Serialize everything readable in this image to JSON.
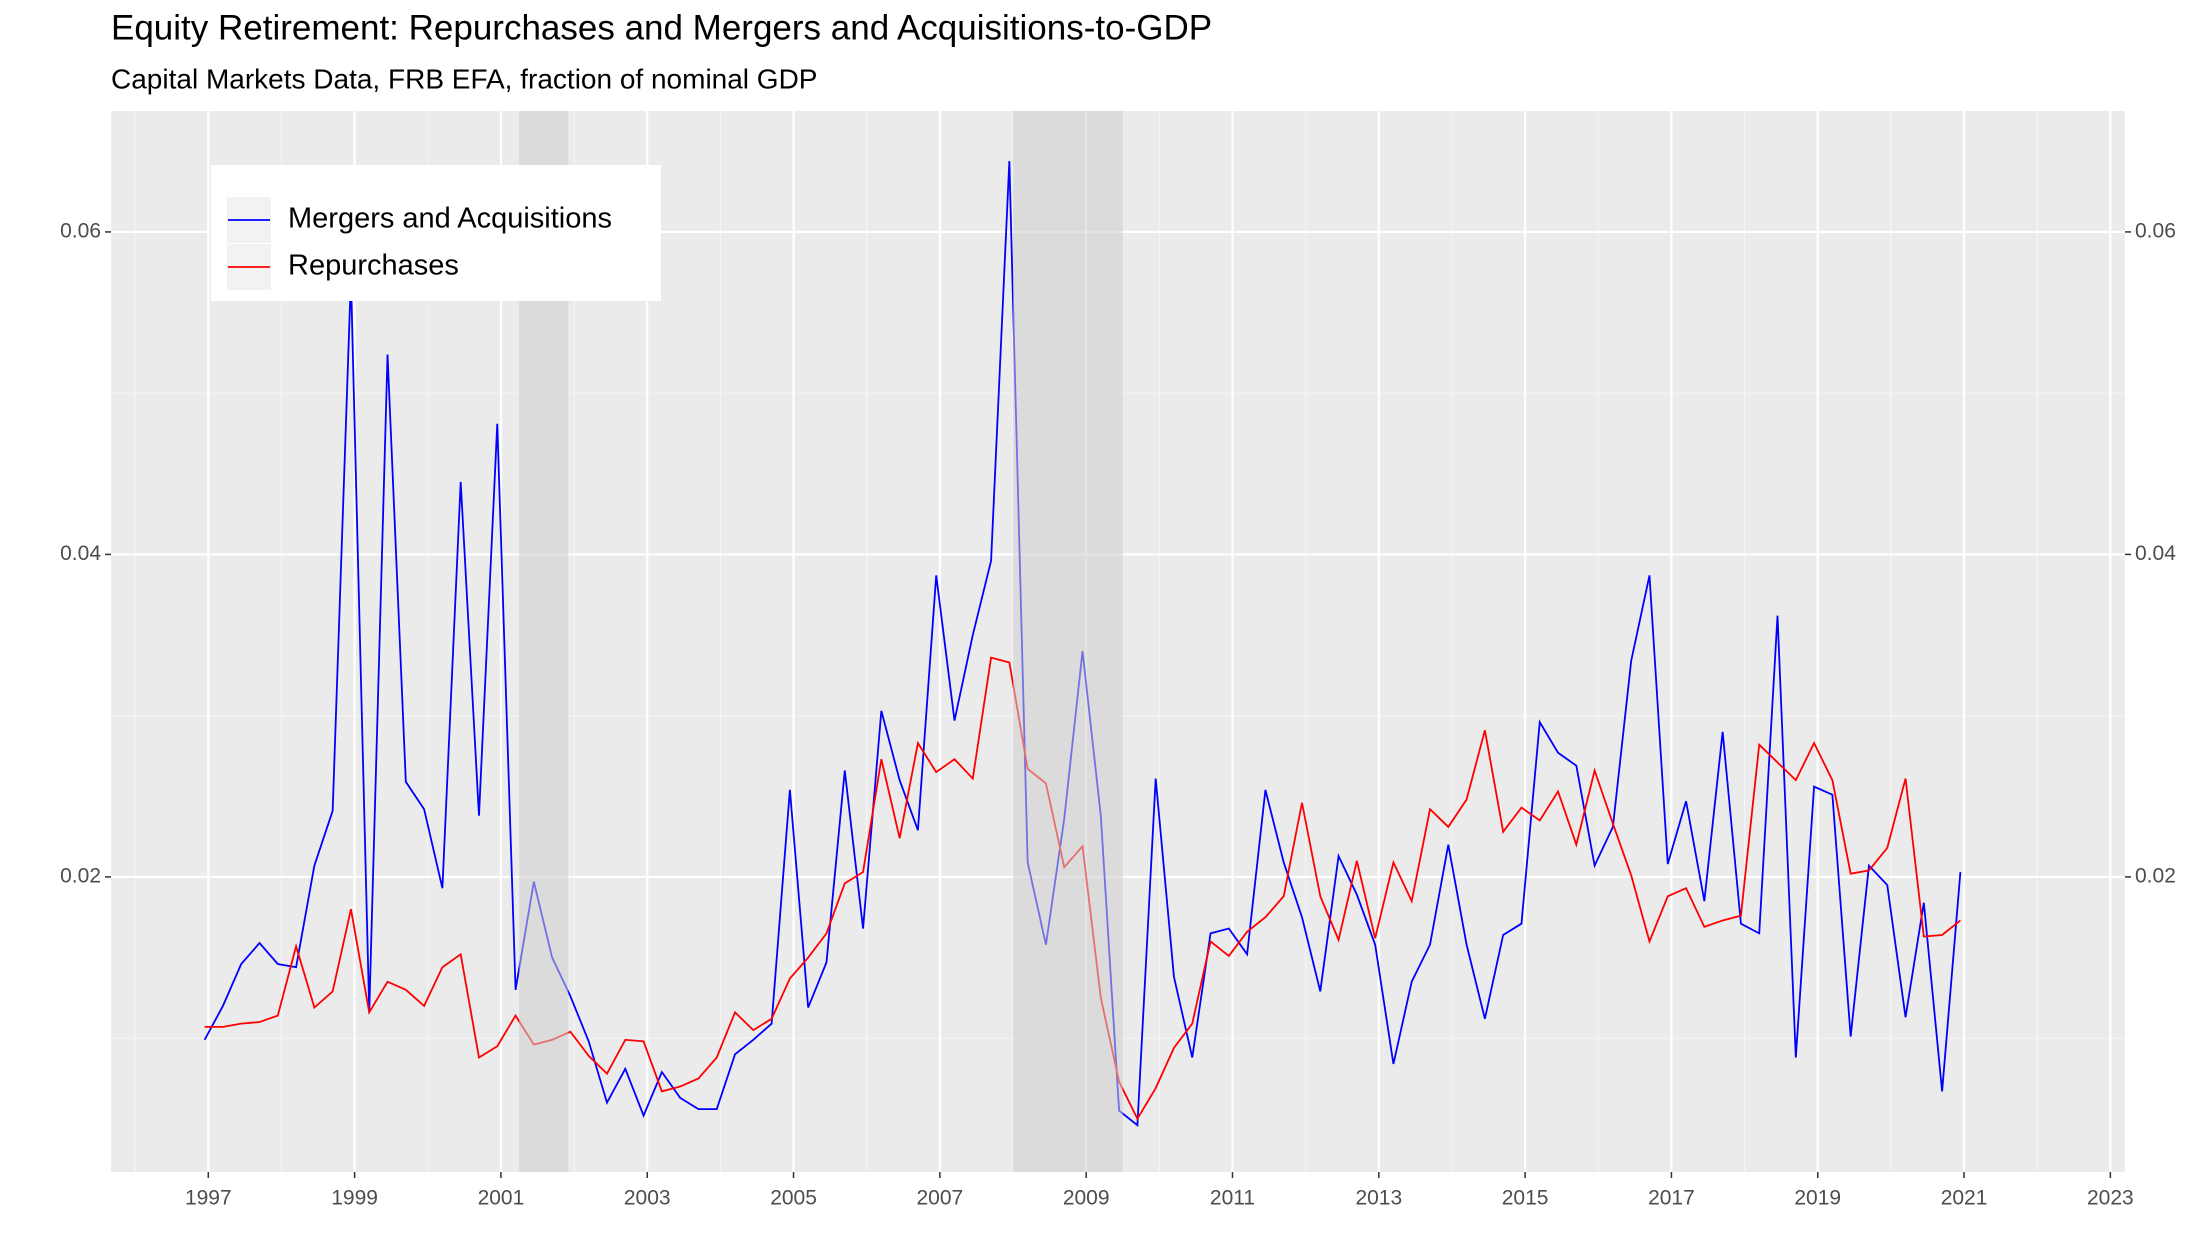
{
  "chart_data": {
    "type": "line",
    "title": "Equity Retirement: Repurchases and Mergers and Acquisitions-to-GDP",
    "subtitle": "Capital Markets Data, FRB EFA, fraction of nominal GDP",
    "x": [
      1996.95,
      1997.2,
      1997.45,
      1997.7,
      1997.95,
      1998.2,
      1998.45,
      1998.7,
      1998.95,
      1999.2,
      1999.45,
      1999.7,
      1999.95,
      2000.2,
      2000.45,
      2000.7,
      2000.95,
      2001.2,
      2001.45,
      2001.7,
      2001.95,
      2002.2,
      2002.45,
      2002.7,
      2002.95,
      2003.2,
      2003.45,
      2003.7,
      2003.95,
      2004.2,
      2004.45,
      2004.7,
      2004.95,
      2005.2,
      2005.45,
      2005.7,
      2005.95,
      2006.2,
      2006.45,
      2006.7,
      2006.95,
      2007.2,
      2007.45,
      2007.7,
      2007.95,
      2008.2,
      2008.45,
      2008.7,
      2008.95,
      2009.2,
      2009.45,
      2009.7,
      2009.95,
      2010.2,
      2010.45,
      2010.7,
      2010.95,
      2011.2,
      2011.45,
      2011.7,
      2011.95,
      2012.2,
      2012.45,
      2012.7,
      2012.95,
      2013.2,
      2013.45,
      2013.7,
      2013.95,
      2014.2,
      2014.45,
      2014.7,
      2014.95,
      2015.2,
      2015.45,
      2015.7,
      2015.95,
      2016.2,
      2016.45,
      2016.7,
      2016.95,
      2017.2,
      2017.45,
      2017.7,
      2017.95,
      2018.2,
      2018.45,
      2018.7,
      2018.95,
      2019.2,
      2019.45,
      2019.7,
      2019.95,
      2020.2,
      2020.45,
      2020.7,
      2020.95
    ],
    "series": [
      {
        "name": "Mergers and Acquisitions",
        "color": "#0000ff",
        "values": [
          0.0099,
          0.012,
          0.0146,
          0.0159,
          0.0146,
          0.0144,
          0.0207,
          0.0241,
          0.0572,
          0.0116,
          0.0524,
          0.0259,
          0.0242,
          0.0193,
          0.0445,
          0.0238,
          0.0481,
          0.013,
          0.0197,
          0.015,
          0.0126,
          0.0098,
          0.006,
          0.0081,
          0.0052,
          0.0079,
          0.0063,
          0.0056,
          0.0056,
          0.009,
          0.0099,
          0.0109,
          0.0254,
          0.0119,
          0.0147,
          0.0266,
          0.0168,
          0.0303,
          0.026,
          0.0229,
          0.0387,
          0.0297,
          0.035,
          0.0396,
          0.0644,
          0.0209,
          0.0158,
          0.0236,
          0.034,
          0.0238,
          0.0055,
          0.0046,
          0.0261,
          0.0138,
          0.0088,
          0.0165,
          0.0168,
          0.0152,
          0.0254,
          0.0209,
          0.0175,
          0.0129,
          0.0213,
          0.0189,
          0.0158,
          0.0084,
          0.0135,
          0.0158,
          0.022,
          0.0158,
          0.0112,
          0.0164,
          0.0171,
          0.0296,
          0.0277,
          0.0269,
          0.0207,
          0.0231,
          0.0334,
          0.0387,
          0.0208,
          0.0247,
          0.0185,
          0.029,
          0.0171,
          0.0165,
          0.0362,
          0.0088,
          0.0256,
          0.0251,
          0.0101,
          0.0207,
          0.0195,
          0.0113,
          0.0184,
          0.0067,
          0.0203
        ]
      },
      {
        "name": "Repurchases",
        "color": "#ff0000",
        "values": [
          0.0107,
          0.0107,
          0.0109,
          0.011,
          0.0114,
          0.0157,
          0.0119,
          0.0129,
          0.018,
          0.0116,
          0.0135,
          0.013,
          0.012,
          0.0144,
          0.0152,
          0.0088,
          0.0095,
          0.0114,
          0.0096,
          0.0099,
          0.0104,
          0.0089,
          0.0078,
          0.0099,
          0.0098,
          0.0067,
          0.007,
          0.0075,
          0.0088,
          0.0116,
          0.0105,
          0.0112,
          0.0137,
          0.015,
          0.0165,
          0.0196,
          0.0203,
          0.0273,
          0.0224,
          0.0283,
          0.0265,
          0.0273,
          0.0261,
          0.0336,
          0.0333,
          0.0267,
          0.0258,
          0.0206,
          0.0219,
          0.0125,
          0.0073,
          0.005,
          0.0069,
          0.0094,
          0.0109,
          0.016,
          0.0151,
          0.0166,
          0.0175,
          0.0188,
          0.0246,
          0.0188,
          0.0161,
          0.021,
          0.0162,
          0.0209,
          0.0185,
          0.0242,
          0.0231,
          0.0248,
          0.0291,
          0.0228,
          0.0243,
          0.0235,
          0.0253,
          0.022,
          0.0266,
          0.0233,
          0.0201,
          0.016,
          0.0188,
          0.0193,
          0.0169,
          0.0173,
          0.0176,
          0.0282,
          0.0271,
          0.026,
          0.0283,
          0.026,
          0.0202,
          0.0204,
          0.0218,
          0.0261,
          0.0163,
          0.0164,
          0.0173
        ]
      }
    ],
    "recessions": [
      [
        2001.25,
        2001.92
      ],
      [
        2008.0,
        2009.5
      ]
    ],
    "xlim": [
      1995.67,
      2023.2
    ],
    "xticks": [
      1997,
      1999,
      2001,
      2003,
      2005,
      2007,
      2009,
      2011,
      2013,
      2015,
      2017,
      2019,
      2021,
      2023
    ],
    "ylim": [
      0.0017,
      0.0675
    ],
    "yticks": [
      0.02,
      0.04,
      0.06
    ],
    "grid": true,
    "legend": "top-left"
  }
}
